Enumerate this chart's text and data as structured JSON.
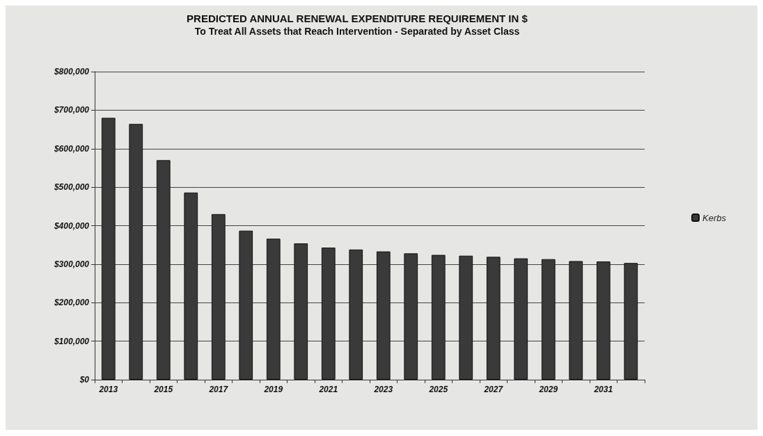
{
  "chart_data": {
    "type": "bar",
    "title": "PREDICTED ANNUAL RENEWAL EXPENDITURE REQUIREMENT IN $",
    "subtitle": "To Treat All Assets that Reach Intervention - Separated by Asset Class",
    "categories": [
      "2013",
      null,
      "2015",
      null,
      "2017",
      null,
      "2019",
      null,
      "2021",
      null,
      "2023",
      null,
      "2025",
      null,
      "2027",
      null,
      "2029",
      null,
      "2031",
      null
    ],
    "series": [
      {
        "name": "Kerbs",
        "color": "#3a3a3a",
        "values": [
          680000,
          664000,
          570000,
          486000,
          430000,
          387000,
          366000,
          354000,
          343000,
          338000,
          333000,
          328000,
          324000,
          322000,
          319000,
          315000,
          313000,
          308000,
          307000,
          303000
        ]
      }
    ],
    "ylim": [
      0,
      800000
    ],
    "yticks": [
      {
        "value": 0,
        "label": "$0"
      },
      {
        "value": 100000,
        "label": "$100,000"
      },
      {
        "value": 200000,
        "label": "$200,000"
      },
      {
        "value": 300000,
        "label": "$300,000"
      },
      {
        "value": 400000,
        "label": "$400,000"
      },
      {
        "value": 500000,
        "label": "$500,000"
      },
      {
        "value": 600000,
        "label": "$600,000"
      },
      {
        "value": 700000,
        "label": "$700,000"
      },
      {
        "value": 800000,
        "label": "$800,000"
      }
    ],
    "grid": "y",
    "legend": "right"
  }
}
